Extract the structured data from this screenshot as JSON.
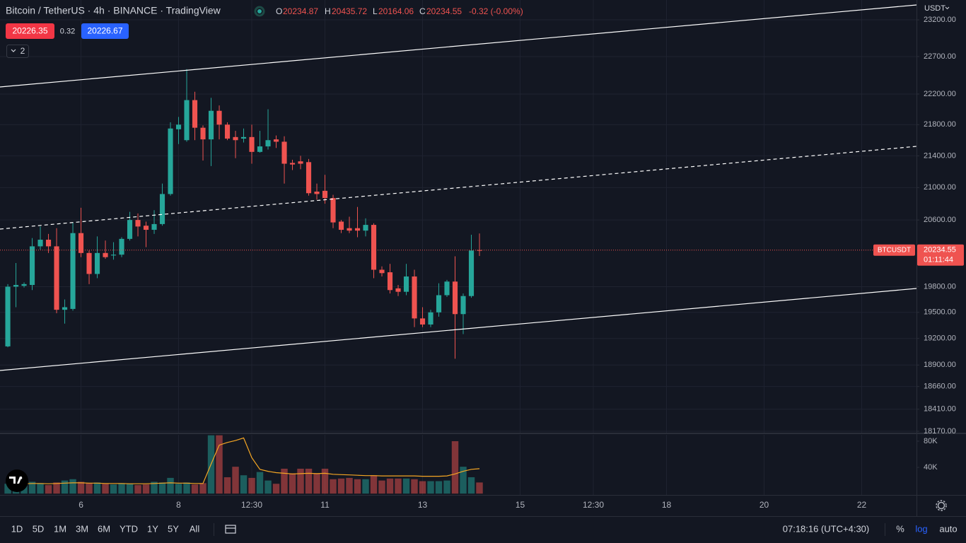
{
  "header": {
    "title": "Bitcoin / TetherUS · 4h · BINANCE · TradingView",
    "ohlc_labels": [
      "O",
      "H",
      "L",
      "C"
    ],
    "change": "-0.32 (-0.00%)",
    "sell_price": "20226.35",
    "spread": "0.32",
    "buy_price": "20226.67",
    "indicator_count": "2",
    "currency": "USDT",
    "symbol_code": "BTCUSDT",
    "countdown": "01:11:44"
  },
  "chart_data": {
    "type": "candlestick",
    "log_scale": true,
    "grid": true,
    "up_color": "#26a69a",
    "down_color": "#ef5350",
    "volume_up_color": "#26a69a80",
    "volume_down_color": "#ef535080",
    "volume_ma_color": "#f5a623",
    "open": [
      19110,
      19800,
      19810,
      19820,
      20280,
      20360,
      20280,
      19530,
      19540,
      20440,
      20200,
      19950,
      20200,
      20170,
      20180,
      20370,
      20600,
      20530,
      20480,
      20550,
      20920,
      21740,
      21600,
      22120,
      21760,
      21610,
      21980,
      21800,
      21640,
      21620,
      21640,
      21450,
      21520,
      21610,
      21580,
      21310,
      21330,
      21320,
      20950,
      20960,
      20870,
      20580,
      20500,
      20500,
      20470,
      20540,
      20000,
      19970,
      19780,
      19740,
      19920,
      19430,
      19360,
      19500,
      19700,
      19860,
      19480,
      19690,
      20234.87
    ],
    "high": [
      19830,
      20080,
      19850,
      20380,
      20520,
      20430,
      20500,
      19650,
      20570,
      20750,
      20230,
      20400,
      20350,
      20330,
      20390,
      20700,
      20680,
      20580,
      20720,
      21050,
      21830,
      21900,
      22530,
      22230,
      21790,
      22150,
      22050,
      21830,
      21720,
      21750,
      21800,
      21720,
      22000,
      21660,
      21650,
      21350,
      21400,
      21360,
      21050,
      21160,
      20910,
      20600,
      20640,
      20760,
      20620,
      20560,
      20040,
      20070,
      19820,
      20070,
      20000,
      19560,
      19530,
      19840,
      19880,
      20160,
      19720,
      20420,
      20435.72
    ],
    "low": [
      19100,
      19560,
      19790,
      19760,
      20240,
      20200,
      19490,
      19370,
      19520,
      20150,
      19830,
      19900,
      20130,
      20120,
      20150,
      20350,
      20400,
      20270,
      20430,
      20530,
      20900,
      21550,
      21580,
      21600,
      21340,
      21270,
      21610,
      21600,
      21370,
      21570,
      21300,
      21440,
      21480,
      21500,
      21050,
      21220,
      21230,
      20900,
      20850,
      20800,
      20500,
      20440,
      20440,
      20390,
      20400,
      19900,
      19920,
      19720,
      19690,
      19700,
      19330,
      19330,
      19330,
      19450,
      19680,
      18970,
      19250,
      19670,
      20164.06
    ],
    "close": [
      19800,
      19820,
      19830,
      20280,
      20360,
      20280,
      19530,
      19560,
      20440,
      20200,
      19950,
      20200,
      20150,
      20180,
      20370,
      20600,
      20520,
      20480,
      20550,
      20920,
      21750,
      21800,
      22120,
      21760,
      21610,
      21980,
      21800,
      21620,
      21600,
      21640,
      21450,
      21520,
      21600,
      21580,
      21300,
      21290,
      21300,
      20930,
      20920,
      20870,
      20570,
      20480,
      20470,
      20470,
      20540,
      20000,
      19960,
      19760,
      19740,
      19920,
      19430,
      19360,
      19500,
      19700,
      19860,
      19480,
      19690,
      20230,
      20234.55
    ],
    "volume": [
      15000,
      12000,
      14000,
      18000,
      16000,
      13000,
      17000,
      20000,
      22000,
      18000,
      16000,
      17000,
      15000,
      14000,
      16000,
      15000,
      13000,
      14000,
      18000,
      17000,
      24000,
      15000,
      17000,
      14000,
      16000,
      89000,
      89000,
      25000,
      41000,
      28000,
      24000,
      33000,
      20000,
      15000,
      38000,
      31000,
      38000,
      38000,
      31000,
      38000,
      22000,
      23000,
      24000,
      22000,
      22000,
      28000,
      20000,
      23000,
      23000,
      23000,
      22000,
      19000,
      19000,
      19000,
      20000,
      80000,
      41000,
      25000,
      17000
    ],
    "volume_ma": [
      14000,
      14500,
      15000,
      15500,
      15500,
      15000,
      15500,
      16000,
      16500,
      16500,
      16000,
      16000,
      15500,
      15500,
      15500,
      15000,
      15000,
      15000,
      15500,
      16000,
      16500,
      16000,
      16000,
      15500,
      15500,
      45000,
      74000,
      78000,
      81000,
      85000,
      55000,
      37000,
      34000,
      32000,
      31000,
      30000,
      30500,
      31000,
      30500,
      31000,
      29500,
      29000,
      28500,
      28000,
      27500,
      27500,
      27000,
      27000,
      27000,
      27000,
      27000,
      26500,
      26500,
      26500,
      27000,
      30000,
      34000,
      37000,
      38000
    ],
    "xlim": [
      -0.96,
      111.74
    ],
    "xticks": [
      {
        "value": 9,
        "label": "6"
      },
      {
        "value": 21,
        "label": "8"
      },
      {
        "value": 30,
        "label": "12:30"
      },
      {
        "value": 39,
        "label": "11"
      },
      {
        "value": 51,
        "label": "13"
      },
      {
        "value": 63,
        "label": "15"
      },
      {
        "value": 72,
        "label": "12:30"
      },
      {
        "value": 81,
        "label": "18"
      },
      {
        "value": 93,
        "label": "20"
      },
      {
        "value": 105,
        "label": "22"
      }
    ],
    "ylim": [
      18155,
      23475
    ],
    "yticks": [
      {
        "value": 18170,
        "label": "18170.00"
      },
      {
        "value": 18410,
        "label": "18410.00"
      },
      {
        "value": 18660,
        "label": "18660.00"
      },
      {
        "value": 18900,
        "label": "18900.00"
      },
      {
        "value": 19200,
        "label": "19200.00"
      },
      {
        "value": 19500,
        "label": "19500.00"
      },
      {
        "value": 19800,
        "label": "19800.00"
      },
      {
        "value": 20600,
        "label": "20600.00"
      },
      {
        "value": 21000,
        "label": "21000.00"
      },
      {
        "value": 21400,
        "label": "21400.00"
      },
      {
        "value": 21800,
        "label": "21800.00"
      },
      {
        "value": 22200,
        "label": "22200.00"
      },
      {
        "value": 22700,
        "label": "22700.00"
      },
      {
        "value": 23200,
        "label": "23200.00"
      }
    ],
    "volume_lim": [
      -2000,
      89700
    ],
    "volume_ticks": [
      {
        "value": 40000,
        "label": "40K"
      },
      {
        "value": 80000,
        "label": "80K"
      }
    ]
  },
  "toolbar": {
    "ranges": [
      "1D",
      "5D",
      "1M",
      "3M",
      "6M",
      "YTD",
      "1Y",
      "5Y",
      "All"
    ],
    "clock": "07:18:16 (UTC+4:30)",
    "percent": "%",
    "log": "log",
    "auto": "auto"
  }
}
